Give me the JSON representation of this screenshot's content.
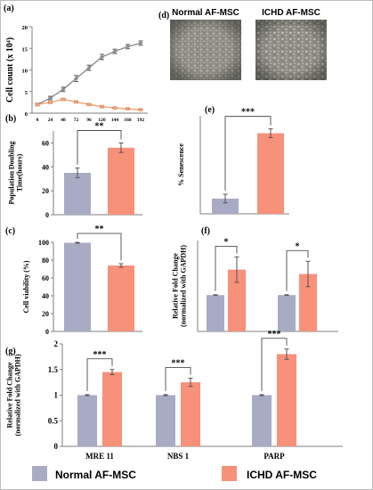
{
  "figure": {
    "colors": {
      "normal": "#a9abc4",
      "ichd": "#f8917a",
      "axis": "#7f7f7f",
      "line_normal": "#8f8f8f",
      "line_ichd": "#f4a073"
    },
    "legend": [
      {
        "label": "Normal  AF-MSC",
        "color": "#a9abc4"
      },
      {
        "label": "ICHD AF-MSC",
        "color": "#f8917a"
      }
    ],
    "image_panel": {
      "panel_label": "(d)",
      "captions": [
        "Normal  AF-MSC",
        "ICHD AF-MSC"
      ]
    }
  },
  "chart_data": [
    {
      "id": "a",
      "panel_label": "(a)",
      "type": "line",
      "title": "",
      "xlabel": "",
      "ylabel": "Cell count (x 10⁴)",
      "x": [
        0,
        24,
        48,
        72,
        96,
        120,
        144,
        168,
        192
      ],
      "xlim": [
        0,
        192
      ],
      "ylim": [
        0,
        20
      ],
      "yticks": [
        0,
        5,
        10,
        15,
        20
      ],
      "series": [
        {
          "values": [
            2,
            3.5,
            5.5,
            8,
            10.5,
            13,
            14.3,
            15.4,
            16.2
          ],
          "errors": [
            0.3,
            0.4,
            0.5,
            0.7,
            0.6,
            0.6,
            0.5,
            0.5,
            0.5
          ],
          "marker": "diamond",
          "color": "#8f8f8f"
        },
        {
          "values": [
            2,
            2.5,
            3.2,
            2.6,
            2.0,
            1.5,
            1.2,
            1.0,
            0.8
          ],
          "errors": [
            0.2,
            0.2,
            0.2,
            0.2,
            0.2,
            0.2,
            0.1,
            0.1,
            0.1
          ],
          "marker": "square",
          "color": "#f4a073"
        }
      ]
    },
    {
      "id": "b",
      "panel_label": "(b)",
      "type": "bar",
      "ylabel": "Population Doubling\nTime(hours)",
      "categories": [
        "Normal",
        "ICHD"
      ],
      "values": [
        35,
        56
      ],
      "errors": [
        4,
        4
      ],
      "ylim": [
        0,
        70
      ],
      "yticks": [
        0,
        20,
        40,
        60
      ],
      "significance": [
        {
          "from": 0,
          "to": 1,
          "label": "**"
        }
      ]
    },
    {
      "id": "c",
      "panel_label": "(c)",
      "type": "bar",
      "ylabel": "Cell viability (%)",
      "categories": [
        "Normal",
        "ICHD"
      ],
      "values": [
        99.5,
        74
      ],
      "errors": [
        0.5,
        2
      ],
      "ylim": [
        0,
        100
      ],
      "yticks": [
        0,
        20,
        40,
        60,
        80,
        100
      ],
      "significance": [
        {
          "from": 0,
          "to": 1,
          "label": "**"
        }
      ]
    },
    {
      "id": "e",
      "panel_label": "(e)",
      "type": "bar",
      "ylabel": "% Senescence",
      "categories": [
        "Normal",
        "ICHD"
      ],
      "values": [
        7,
        37
      ],
      "errors": [
        2,
        2
      ],
      "ylim": [
        0,
        45
      ],
      "yticks": [],
      "significance": [
        {
          "from": 0,
          "to": 1,
          "label": "***"
        }
      ]
    },
    {
      "id": "f",
      "panel_label": "(f)",
      "type": "bar",
      "ylabel": "Relative Fold Change\n(normalized with GAPDH)",
      "groups": 2,
      "series": [
        {
          "values": [
            1,
            1
          ],
          "errors": [
            0.01,
            0.01
          ]
        },
        {
          "values": [
            1.7,
            1.58
          ],
          "errors": [
            0.35,
            0.35
          ]
        }
      ],
      "ylim": [
        0,
        2.5
      ],
      "yticks": [],
      "significance": [
        {
          "group": 0,
          "label": "*"
        },
        {
          "group": 1,
          "label": "*"
        }
      ]
    },
    {
      "id": "g",
      "panel_label": "(g)",
      "type": "bar",
      "ylabel": "Relative Fold Change\n(normalized with GAPDH)",
      "categories": [
        "MRE 11",
        "NBS 1",
        "PARP"
      ],
      "series": [
        {
          "values": [
            1,
            1,
            1
          ],
          "errors": [
            0.01,
            0.01,
            0.01
          ]
        },
        {
          "values": [
            1.45,
            1.25,
            1.8
          ],
          "errors": [
            0.05,
            0.08,
            0.1
          ]
        }
      ],
      "ylim": [
        0,
        2
      ],
      "yticks": [
        0,
        0.5,
        1,
        1.5,
        2
      ],
      "significance": [
        {
          "group": 0,
          "label": "***"
        },
        {
          "group": 1,
          "label": "***"
        },
        {
          "group": 2,
          "label": "***"
        }
      ]
    }
  ]
}
